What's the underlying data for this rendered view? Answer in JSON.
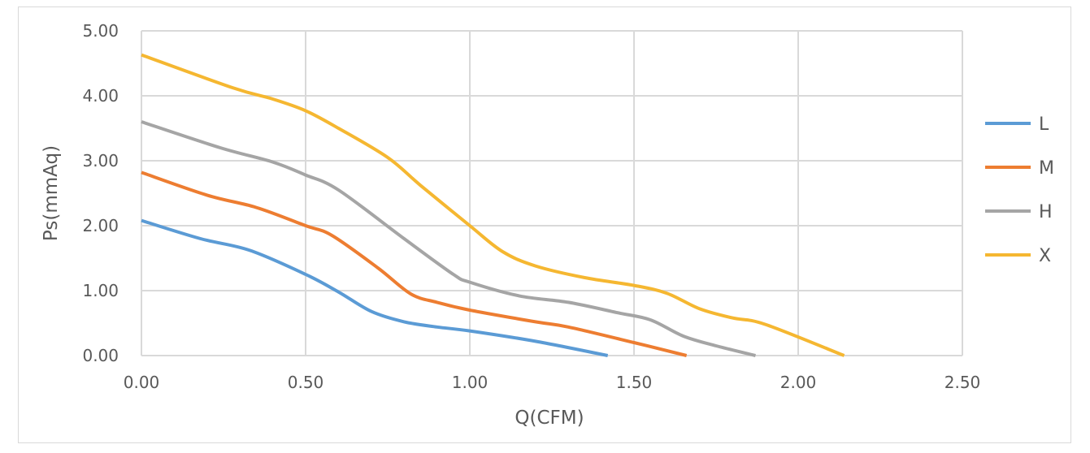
{
  "chart_data": {
    "type": "line",
    "title": "",
    "xlabel": "Q(CFM)",
    "ylabel": "Ps(mmAq)",
    "xlim": [
      0,
      2.5
    ],
    "ylim": [
      0,
      5
    ],
    "xticks": [
      "0.00",
      "0.50",
      "1.00",
      "1.50",
      "2.00",
      "2.50"
    ],
    "yticks": [
      "0.00",
      "1.00",
      "2.00",
      "3.00",
      "4.00",
      "5.00"
    ],
    "grid": true,
    "legend_position": "right",
    "series": [
      {
        "name": "L",
        "color": "#5b9bd5",
        "x": [
          0,
          0.18,
          0.33,
          0.5,
          0.6,
          0.7,
          0.8,
          0.9,
          1.0,
          1.2,
          1.42
        ],
        "y": [
          2.08,
          1.8,
          1.62,
          1.25,
          0.98,
          0.68,
          0.52,
          0.44,
          0.38,
          0.22,
          0.0
        ]
      },
      {
        "name": "M",
        "color": "#ed7d31",
        "x": [
          0,
          0.2,
          0.35,
          0.5,
          0.58,
          0.72,
          0.82,
          0.9,
          1.0,
          1.2,
          1.3,
          1.5,
          1.66
        ],
        "y": [
          2.82,
          2.47,
          2.28,
          2.0,
          1.85,
          1.35,
          0.95,
          0.82,
          0.7,
          0.52,
          0.44,
          0.2,
          0.0
        ]
      },
      {
        "name": "H",
        "color": "#a5a5a5",
        "x": [
          0,
          0.24,
          0.4,
          0.5,
          0.6,
          0.8,
          0.95,
          1.0,
          1.15,
          1.3,
          1.45,
          1.55,
          1.65,
          1.75,
          1.87
        ],
        "y": [
          3.6,
          3.2,
          2.98,
          2.78,
          2.55,
          1.8,
          1.25,
          1.13,
          0.92,
          0.82,
          0.66,
          0.55,
          0.3,
          0.15,
          0.0
        ]
      },
      {
        "name": "X",
        "color": "#f5b731",
        "x": [
          0,
          0.28,
          0.4,
          0.5,
          0.6,
          0.75,
          0.85,
          1.0,
          1.1,
          1.2,
          1.35,
          1.5,
          1.6,
          1.7,
          1.8,
          1.9,
          2.14
        ],
        "y": [
          4.63,
          4.12,
          3.95,
          3.77,
          3.5,
          3.05,
          2.62,
          2.0,
          1.6,
          1.38,
          1.2,
          1.08,
          0.96,
          0.72,
          0.58,
          0.48,
          0.0
        ]
      }
    ]
  }
}
